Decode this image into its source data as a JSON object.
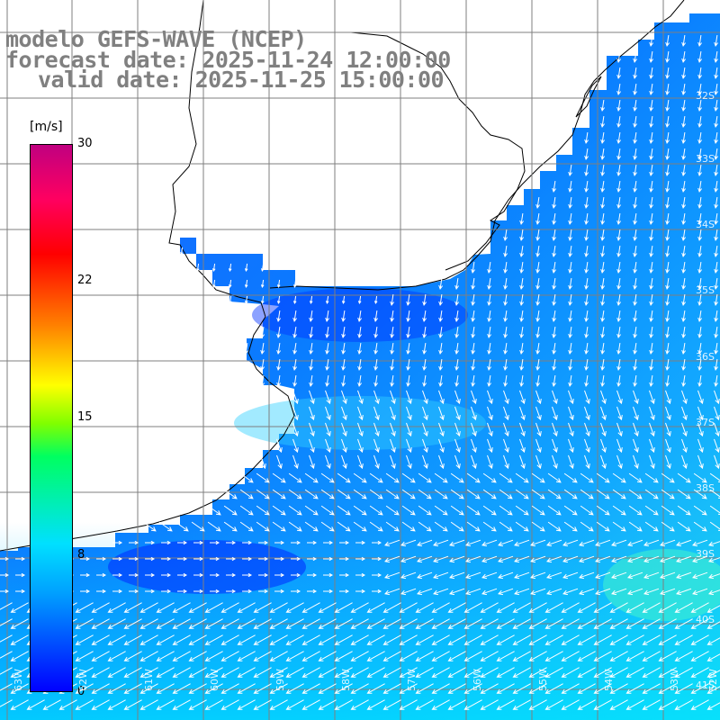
{
  "title": {
    "line1": "modelo GEFS-WAVE (NCEP)",
    "line2": "forecast date: 2025-11-24 12:00:00",
    "line3": "valid date: 2025-11-25 15:00:00"
  },
  "colorbar": {
    "unit": "[m/s]",
    "min": 0,
    "max": 30,
    "ticks": [
      "30",
      "22",
      "15",
      "8",
      "0"
    ],
    "tick_values": [
      30,
      22,
      15,
      8,
      0
    ],
    "colors": [
      "#0000ff",
      "#00a0ff",
      "#00e0ff",
      "#00ff60",
      "#80ff00",
      "#ffff00",
      "#ff8000",
      "#ff0000",
      "#ff0060",
      "#c00080"
    ]
  },
  "map": {
    "lat_labels": [
      "32S",
      "33S",
      "34S",
      "35S",
      "36S",
      "37S",
      "38S",
      "39S",
      "40S",
      "41S"
    ],
    "lat_values": [
      -32,
      -33,
      -34,
      -35,
      -36,
      -37,
      -38,
      -39,
      -40,
      -41
    ],
    "lon_labels": [
      "63W",
      "62W",
      "61W",
      "60W",
      "59W",
      "58W",
      "57W",
      "56W",
      "55W",
      "54W",
      "53W",
      "52W"
    ],
    "land_color": "#ffffff",
    "grid_color": "#7f7f7f",
    "arrow_color": "#ffffff"
  }
}
